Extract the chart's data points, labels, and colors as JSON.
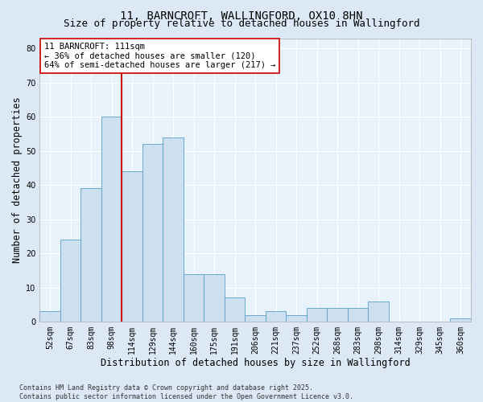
{
  "title_line1": "11, BARNCROFT, WALLINGFORD, OX10 8HN",
  "title_line2": "Size of property relative to detached houses in Wallingford",
  "xlabel": "Distribution of detached houses by size in Wallingford",
  "ylabel": "Number of detached properties",
  "categories": [
    "52sqm",
    "67sqm",
    "83sqm",
    "98sqm",
    "114sqm",
    "129sqm",
    "144sqm",
    "160sqm",
    "175sqm",
    "191sqm",
    "206sqm",
    "221sqm",
    "237sqm",
    "252sqm",
    "268sqm",
    "283sqm",
    "298sqm",
    "314sqm",
    "329sqm",
    "345sqm",
    "360sqm"
  ],
  "values": [
    3,
    24,
    39,
    60,
    44,
    52,
    54,
    14,
    14,
    7,
    2,
    3,
    2,
    4,
    4,
    4,
    6,
    0,
    0,
    0,
    1
  ],
  "bar_color": "#cce0f0",
  "bar_edge_color": "#5a9ec9",
  "vline_color": "#cc0000",
  "vline_pos": 3.5,
  "annotation_text": "11 BARNCROFT: 111sqm\n← 36% of detached houses are smaller (120)\n64% of semi-detached houses are larger (217) →",
  "annotation_box_facecolor": "#ffffff",
  "annotation_box_edgecolor": "#cc0000",
  "ylim": [
    0,
    83
  ],
  "yticks": [
    0,
    10,
    20,
    30,
    40,
    50,
    60,
    70,
    80
  ],
  "footnote": "Contains HM Land Registry data © Crown copyright and database right 2025.\nContains public sector information licensed under the Open Government Licence v3.0.",
  "bg_color": "#dce8f5",
  "plot_bg_color": "#e8f2fb",
  "grid_color": "#ffffff",
  "title_fontsize": 10,
  "subtitle_fontsize": 9,
  "axis_label_fontsize": 8.5,
  "tick_fontsize": 7,
  "annotation_fontsize": 7.5,
  "footnote_fontsize": 6
}
